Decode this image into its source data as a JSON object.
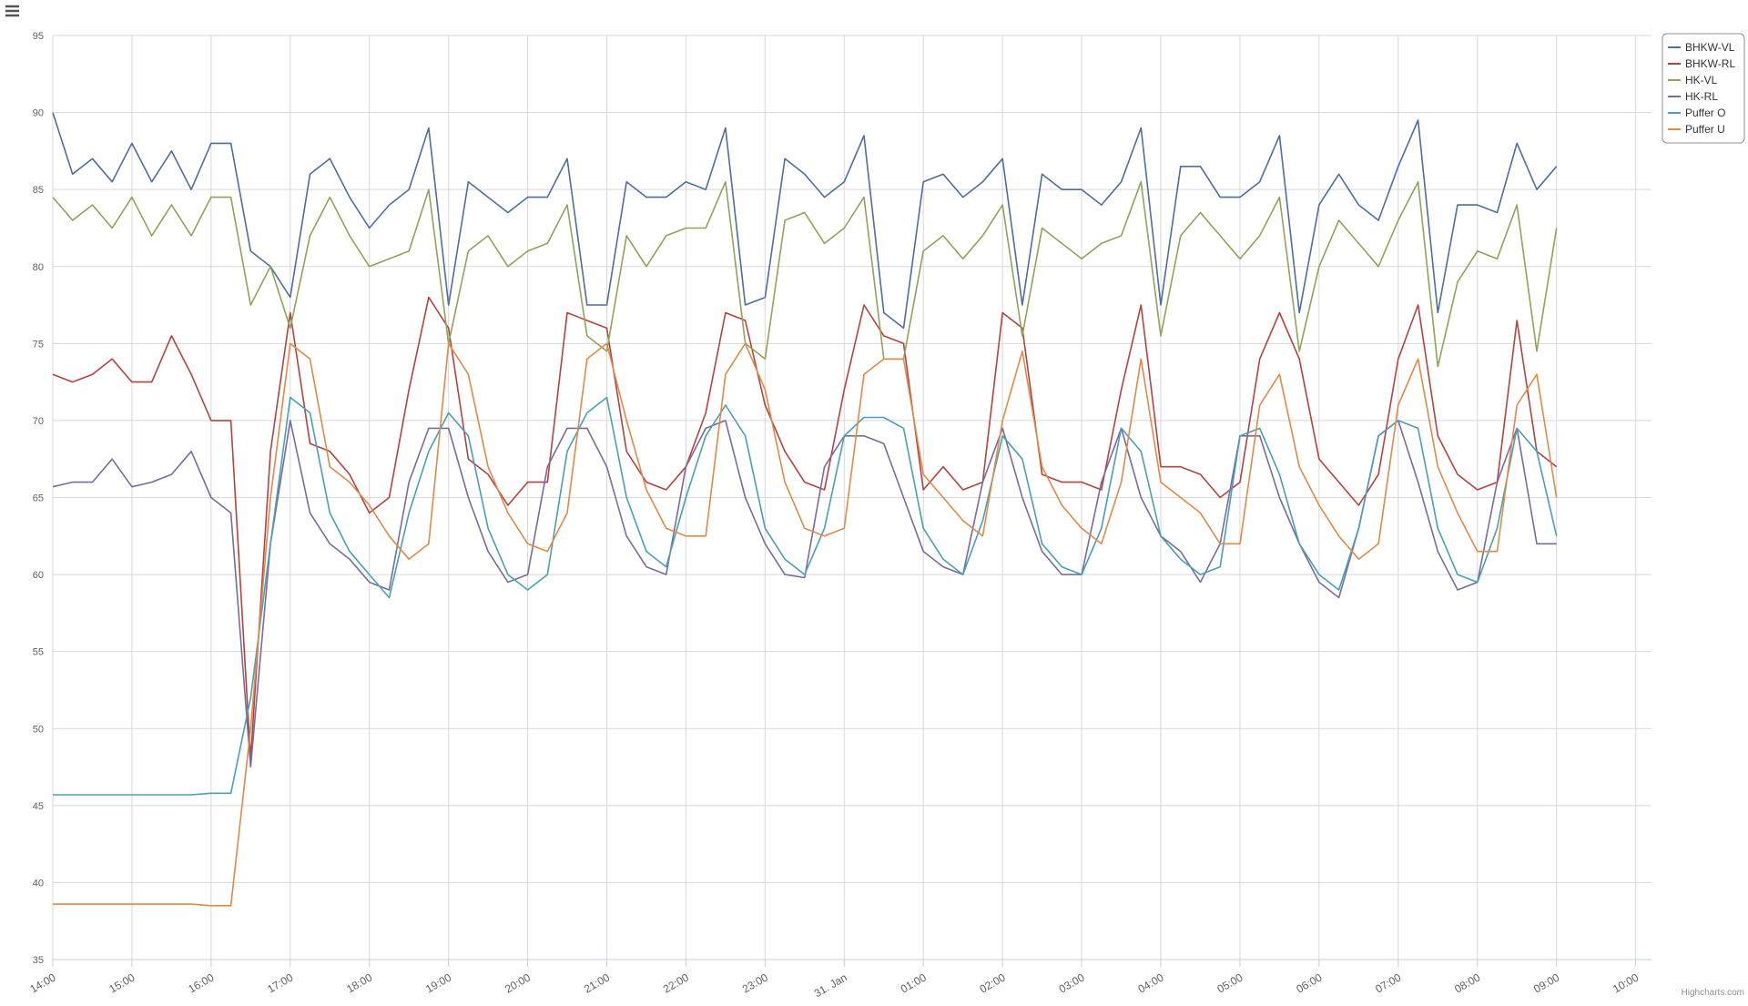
{
  "chart_data": {
    "type": "line",
    "x": [
      14,
      14.25,
      14.5,
      14.75,
      15,
      15.25,
      15.5,
      15.75,
      16,
      16.25,
      16.5,
      16.75,
      17,
      17.25,
      17.5,
      17.75,
      18,
      18.25,
      18.5,
      18.75,
      19,
      19.25,
      19.5,
      19.75,
      20,
      20.25,
      20.5,
      20.75,
      21,
      21.25,
      21.5,
      21.75,
      22,
      22.25,
      22.5,
      22.75,
      23,
      23.25,
      23.5,
      23.75,
      24,
      24.25,
      24.5,
      24.75,
      25,
      25.25,
      25.5,
      25.75,
      26,
      26.25,
      26.5,
      26.75,
      27,
      27.25,
      27.5,
      27.75,
      28,
      28.25,
      28.5,
      28.75,
      29,
      29.25,
      29.5,
      29.75,
      30,
      30.25,
      30.5,
      30.75,
      31,
      31.25,
      31.5,
      31.75,
      32,
      32.25,
      32.5,
      32.75,
      33
    ],
    "xlim": [
      14,
      34.2
    ],
    "xticks": [
      {
        "value": 14,
        "label": "14:00"
      },
      {
        "value": 15,
        "label": "15:00"
      },
      {
        "value": 16,
        "label": "16:00"
      },
      {
        "value": 17,
        "label": "17:00"
      },
      {
        "value": 18,
        "label": "18:00"
      },
      {
        "value": 19,
        "label": "19:00"
      },
      {
        "value": 20,
        "label": "20:00"
      },
      {
        "value": 21,
        "label": "21:00"
      },
      {
        "value": 22,
        "label": "22:00"
      },
      {
        "value": 23,
        "label": "23:00"
      },
      {
        "value": 24,
        "label": "31. Jan"
      },
      {
        "value": 25,
        "label": "01:00"
      },
      {
        "value": 26,
        "label": "02:00"
      },
      {
        "value": 27,
        "label": "03:00"
      },
      {
        "value": 28,
        "label": "04:00"
      },
      {
        "value": 29,
        "label": "05:00"
      },
      {
        "value": 30,
        "label": "06:00"
      },
      {
        "value": 31,
        "label": "07:00"
      },
      {
        "value": 32,
        "label": "08:00"
      },
      {
        "value": 33,
        "label": "09:00"
      },
      {
        "value": 34,
        "label": "10:00"
      }
    ],
    "ylim": [
      35,
      95
    ],
    "yticks": [
      35,
      40,
      45,
      50,
      55,
      60,
      65,
      70,
      75,
      80,
      85,
      90,
      95
    ],
    "grid": true,
    "legend": "top-right",
    "credits": "Highcharts.com",
    "series": [
      {
        "name": "BHKW-VL",
        "color": "#4f6d9e",
        "values": [
          90,
          86,
          87,
          85.5,
          88,
          85.5,
          87.5,
          85,
          88,
          88,
          81,
          80,
          78,
          86,
          87,
          84.5,
          82.5,
          84,
          85,
          89,
          77.5,
          85.5,
          84.5,
          83.5,
          84.5,
          84.5,
          87,
          77.5,
          77.5,
          85.5,
          84.5,
          84.5,
          85.5,
          85,
          89,
          77.5,
          78,
          87,
          86,
          84.5,
          85.5,
          88.5,
          77,
          76,
          85.5,
          86,
          84.5,
          85.5,
          87,
          77.5,
          86,
          85,
          85,
          84,
          85.5,
          89,
          77.5,
          86.5,
          86.5,
          84.5,
          84.5,
          85.5,
          88.5,
          77,
          84,
          86,
          84,
          83,
          86.5,
          89.5,
          77,
          84,
          84,
          83.5,
          88,
          85,
          86.5
        ]
      },
      {
        "name": "BHKW-RL",
        "color": "#b4433f",
        "values": [
          73,
          72.5,
          73,
          74,
          72.5,
          72.5,
          75.5,
          73,
          70,
          70,
          48,
          68,
          77,
          68.5,
          68,
          66.5,
          64,
          65,
          72,
          78,
          76,
          67.5,
          66.5,
          64.5,
          66,
          66,
          77,
          76.5,
          76,
          68,
          66,
          65.5,
          67,
          70.5,
          77,
          76.5,
          71,
          68,
          66,
          65.5,
          72,
          77.5,
          75.5,
          75,
          65.5,
          67,
          65.5,
          66,
          77,
          76,
          66.5,
          66,
          66,
          65.5,
          72,
          77.5,
          67,
          67,
          66.5,
          65,
          66,
          74,
          77,
          74,
          67.5,
          66,
          64.5,
          66.5,
          74,
          77.5,
          69,
          66.5,
          65.5,
          66,
          76.5,
          68,
          67
        ]
      },
      {
        "name": "HK-VL",
        "color": "#8ea45a",
        "values": [
          84.5,
          83,
          84,
          82.5,
          84.5,
          82,
          84,
          82,
          84.5,
          84.5,
          77.5,
          80,
          76,
          82,
          84.5,
          82,
          80,
          80.5,
          81,
          85,
          75,
          81,
          82,
          80,
          81,
          81.5,
          84,
          75.5,
          74.5,
          82,
          80,
          82,
          82.5,
          82.5,
          85.5,
          75,
          74,
          83,
          83.5,
          81.5,
          82.5,
          84.5,
          74,
          74,
          81,
          82,
          80.5,
          82,
          84,
          75.5,
          82.5,
          81.5,
          80.5,
          81.5,
          82,
          85.5,
          75.5,
          82,
          83.5,
          82,
          80.5,
          82,
          84.5,
          74.5,
          80,
          83,
          81.5,
          80,
          83,
          85.5,
          73.5,
          79,
          81,
          80.5,
          84,
          74.5,
          82.5
        ]
      },
      {
        "name": "HK-RL",
        "color": "#7b6b9c",
        "values": [
          65.7,
          66,
          66,
          67.5,
          65.7,
          66,
          66.5,
          68,
          65,
          64,
          47.5,
          62,
          70,
          64,
          62,
          61,
          59.5,
          59,
          66,
          69.5,
          69.5,
          65,
          61.5,
          59.5,
          60,
          67,
          69.5,
          69.5,
          67,
          62.5,
          60.5,
          60,
          67,
          69.5,
          70,
          65,
          62,
          60,
          59.8,
          67,
          69,
          69,
          68.5,
          65,
          61.5,
          60.5,
          60,
          66,
          69.5,
          65,
          61.5,
          60,
          60,
          66,
          69.5,
          65,
          62.5,
          61.5,
          59.5,
          62,
          69,
          69,
          65,
          62,
          59.5,
          58.5,
          63,
          69,
          70,
          66,
          61.5,
          59,
          59.5,
          66,
          69.5,
          62,
          62
        ]
      },
      {
        "name": "Puffer O",
        "color": "#4a9fb4",
        "values": [
          45.7,
          45.7,
          45.7,
          45.7,
          45.7,
          45.7,
          45.7,
          45.7,
          45.8,
          45.8,
          52,
          62,
          71.5,
          70.5,
          64,
          61.5,
          60,
          58.5,
          64,
          68,
          70.5,
          69,
          63,
          60,
          59,
          60,
          68,
          70.5,
          71.5,
          65,
          61.5,
          60.5,
          65,
          69,
          71,
          69,
          63,
          61,
          60,
          63,
          69,
          70.2,
          70.2,
          69.5,
          63,
          61,
          60,
          63.5,
          69,
          67.5,
          62,
          60.5,
          60,
          63,
          69.5,
          68,
          62.5,
          61,
          60,
          60.5,
          69,
          69.5,
          66.5,
          62,
          60,
          59,
          63,
          69,
          70,
          69.5,
          63,
          60,
          59.5,
          63,
          69.5,
          68,
          62.5
        ]
      },
      {
        "name": "Puffer U",
        "color": "#e08a4a",
        "values": [
          38.6,
          38.6,
          38.6,
          38.6,
          38.6,
          38.6,
          38.6,
          38.6,
          38.5,
          38.5,
          50,
          65,
          75,
          74,
          67,
          66,
          64.5,
          62.5,
          61,
          62,
          75,
          73,
          67,
          64,
          62,
          61.5,
          64,
          74,
          75,
          70,
          65.5,
          63,
          62.5,
          62.5,
          73,
          75,
          72,
          66,
          63,
          62.5,
          63,
          73,
          74,
          74,
          66.5,
          65,
          63.5,
          62.5,
          70,
          74.5,
          67,
          64.5,
          63,
          62,
          66,
          74,
          66,
          65,
          64,
          62,
          62,
          71,
          73,
          67,
          64.5,
          62.5,
          61,
          62,
          71,
          74,
          67,
          64,
          61.5,
          61.5,
          71,
          73,
          65
        ]
      }
    ]
  }
}
